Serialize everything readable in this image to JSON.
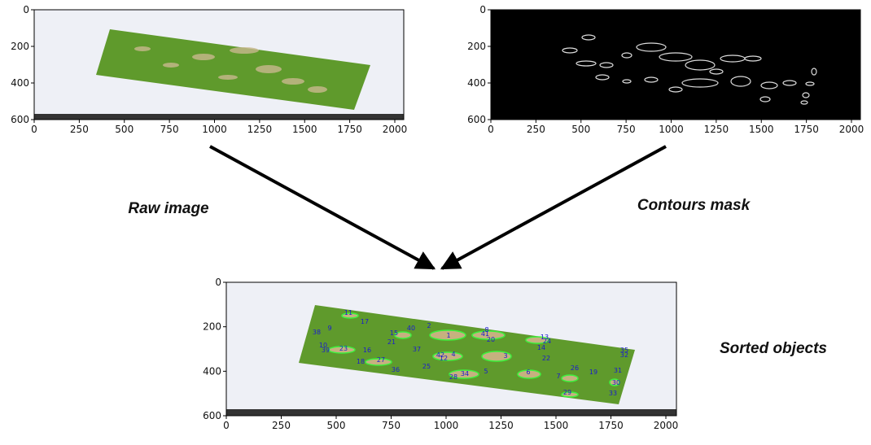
{
  "panels": [
    {
      "caption": "Raw image",
      "xticks": [
        0,
        250,
        500,
        750,
        1000,
        1250,
        1500,
        1750,
        2000
      ],
      "yticks": [
        0,
        200,
        400,
        600
      ]
    },
    {
      "caption": "Contours mask",
      "xticks": [
        0,
        250,
        500,
        750,
        1000,
        1250,
        1500,
        1750,
        2000
      ],
      "yticks": [
        0,
        200,
        400,
        600
      ]
    },
    {
      "caption": "Sorted objects",
      "xticks": [
        0,
        250,
        500,
        750,
        1000,
        1250,
        1500,
        1750,
        2000
      ],
      "yticks": [
        0,
        200,
        400,
        600
      ],
      "object_labels": [
        "11",
        "17",
        "9",
        "38",
        "2",
        "40",
        "8",
        "41",
        "1",
        "15",
        "21",
        "13",
        "24",
        "20",
        "10",
        "39",
        "23",
        "16",
        "37",
        "14",
        "42",
        "12",
        "4",
        "3",
        "22",
        "35",
        "32",
        "18",
        "27",
        "36",
        "25",
        "28",
        "34",
        "5",
        "6",
        "7",
        "26",
        "19",
        "31",
        "30",
        "29",
        "33"
      ]
    }
  ]
}
